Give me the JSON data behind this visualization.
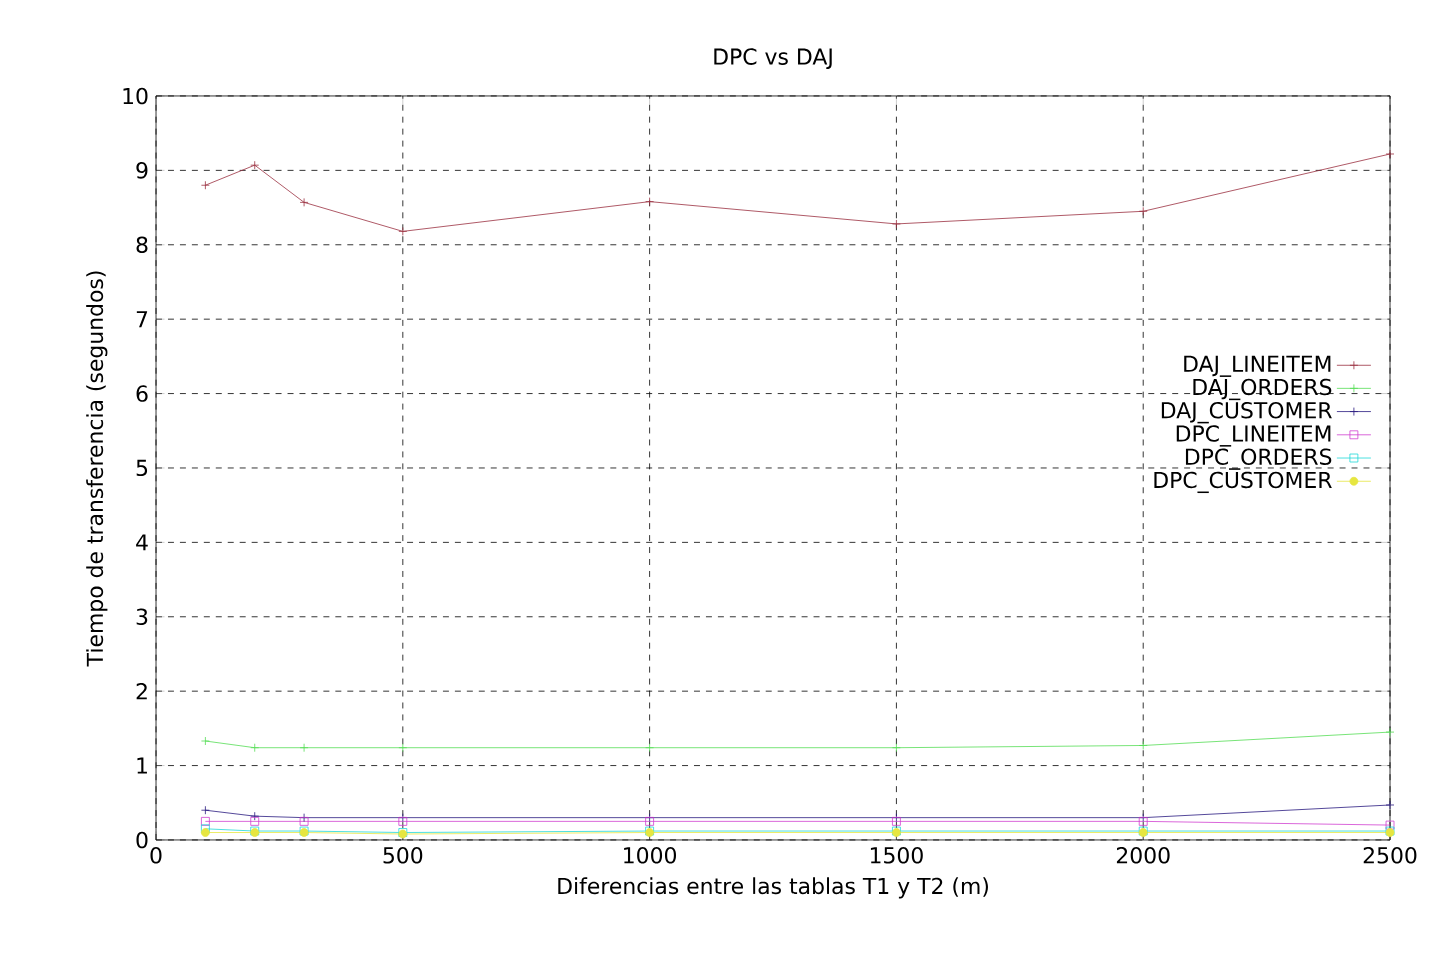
{
  "chart_data": {
    "type": "line",
    "title": "DPC vs DAJ",
    "xlabel": "Diferencias entre las tablas T1 y T2 (m)",
    "ylabel": "Tiempo de transferencia (segundos)",
    "x": [
      100,
      200,
      300,
      500,
      1000,
      1500,
      2000,
      2500
    ],
    "series": [
      {
        "name": "DAJ_LINEITEM",
        "color": "#9a3040",
        "marker": "cross",
        "values": [
          8.8,
          9.07,
          8.57,
          8.18,
          8.58,
          8.28,
          8.45,
          9.22
        ]
      },
      {
        "name": "DAJ_ORDERS",
        "color": "#55dd55",
        "marker": "cross",
        "values": [
          1.33,
          1.24,
          1.24,
          1.24,
          1.24,
          1.24,
          1.27,
          1.45
        ]
      },
      {
        "name": "DAJ_CUSTOMER",
        "color": "#2a1a80",
        "marker": "cross",
        "values": [
          0.4,
          0.32,
          0.3,
          0.3,
          0.3,
          0.3,
          0.3,
          0.47
        ]
      },
      {
        "name": "DPC_LINEITEM",
        "color": "#d040d0",
        "marker": "square",
        "values": [
          0.25,
          0.25,
          0.25,
          0.25,
          0.25,
          0.25,
          0.25,
          0.2
        ]
      },
      {
        "name": "DPC_ORDERS",
        "color": "#20d8d8",
        "marker": "square",
        "values": [
          0.15,
          0.12,
          0.12,
          0.1,
          0.12,
          0.12,
          0.12,
          0.12
        ]
      },
      {
        "name": "DPC_CUSTOMER",
        "color": "#e6e640",
        "marker": "circle",
        "values": [
          0.1,
          0.1,
          0.1,
          0.08,
          0.1,
          0.1,
          0.1,
          0.1
        ]
      }
    ],
    "xlim": [
      0,
      2500
    ],
    "ylim": [
      0,
      10
    ],
    "xticks": [
      0,
      500,
      1000,
      1500,
      2000,
      2500
    ],
    "yticks": [
      0,
      1,
      2,
      3,
      4,
      5,
      6,
      7,
      8,
      9,
      10
    ],
    "grid": true,
    "legend": "right",
    "line_style": "solid"
  }
}
